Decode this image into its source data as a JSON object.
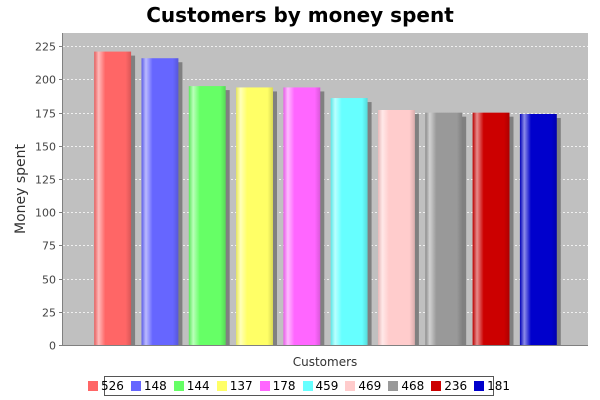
{
  "chart_data": {
    "type": "bar",
    "title": "Customers by money spent",
    "xlabel": "Customers",
    "ylabel": "Money spent",
    "ylim": [
      0,
      235
    ],
    "yticks": [
      0,
      25,
      50,
      75,
      100,
      125,
      150,
      175,
      200,
      225
    ],
    "grid": true,
    "legend_position": "bottom",
    "series": [
      {
        "name": "526",
        "value": 221,
        "color": "#ff6666"
      },
      {
        "name": "148",
        "value": 216,
        "color": "#6666ff"
      },
      {
        "name": "144",
        "value": 195,
        "color": "#66ff66"
      },
      {
        "name": "137",
        "value": 194,
        "color": "#ffff66"
      },
      {
        "name": "178",
        "value": 194,
        "color": "#ff66ff"
      },
      {
        "name": "459",
        "value": 186,
        "color": "#66ffff"
      },
      {
        "name": "469",
        "value": 177,
        "color": "#ffcccc"
      },
      {
        "name": "468",
        "value": 175,
        "color": "#999999"
      },
      {
        "name": "236",
        "value": 175,
        "color": "#cc0000"
      },
      {
        "name": "181",
        "value": 174,
        "color": "#0000cc"
      }
    ]
  }
}
